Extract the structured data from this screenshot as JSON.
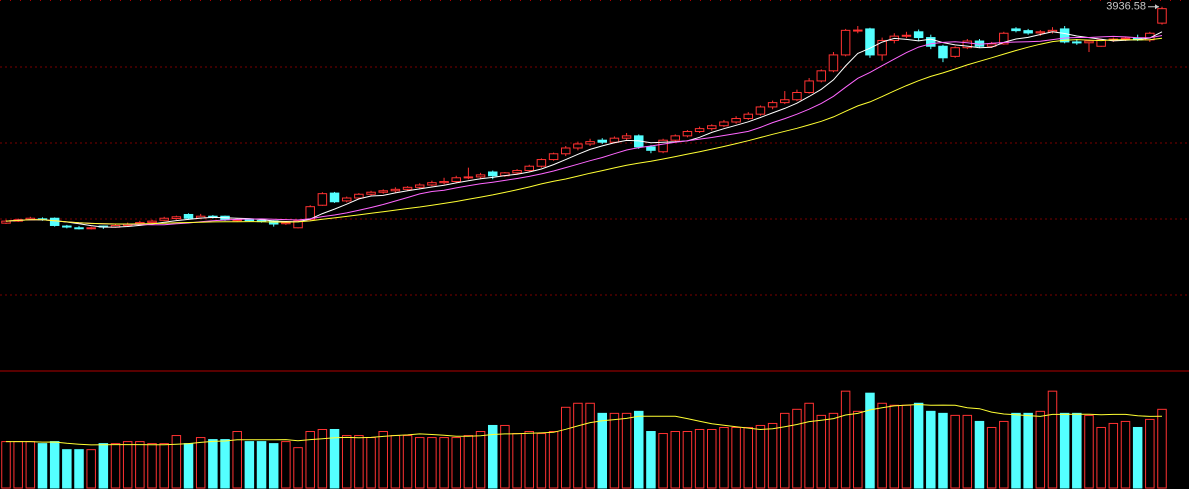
{
  "chart_data": {
    "type": "candlestick",
    "up_color": "#ff3232",
    "down_color": "#54ffff",
    "ylim": [
      2680,
      3960
    ],
    "volume_lim": [
      0,
      115
    ],
    "moving_averages": [
      {
        "period": 5,
        "color": "#ffffff"
      },
      {
        "period": 10,
        "color": "#ff66ff"
      },
      {
        "period": 20,
        "color": "#ffff33"
      }
    ],
    "volume_average": {
      "period": 10,
      "color": "#ffff33"
    },
    "open": [
      3188,
      3195,
      3200,
      3203,
      3205,
      3178,
      3172,
      3170,
      3178,
      3174,
      3180,
      3186,
      3190,
      3198,
      3204,
      3218,
      3206,
      3212,
      3212,
      3198,
      3200,
      3197,
      3196,
      3186,
      3172,
      3200,
      3250,
      3292,
      3265,
      3275,
      3288,
      3295,
      3300,
      3305,
      3312,
      3320,
      3328,
      3332,
      3345,
      3348,
      3365,
      3352,
      3362,
      3370,
      3385,
      3408,
      3428,
      3448,
      3462,
      3475,
      3468,
      3482,
      3490,
      3452,
      3435,
      3475,
      3490,
      3505,
      3515,
      3525,
      3538,
      3550,
      3565,
      3590,
      3605,
      3615,
      3640,
      3680,
      3715,
      3770,
      3855,
      3860,
      3770,
      3820,
      3835,
      3850,
      3830,
      3800,
      3765,
      3795,
      3818,
      3800,
      3808,
      3860,
      3854,
      3846,
      3850,
      3860,
      3815,
      3812,
      3800,
      3822,
      3825,
      3828,
      3822,
      3880
    ],
    "high": [
      3200,
      3204,
      3210,
      3208,
      3208,
      3182,
      3178,
      3176,
      3180,
      3184,
      3190,
      3196,
      3200,
      3210,
      3214,
      3222,
      3220,
      3216,
      3214,
      3204,
      3204,
      3200,
      3198,
      3194,
      3200,
      3250,
      3295,
      3296,
      3280,
      3292,
      3300,
      3305,
      3312,
      3316,
      3326,
      3335,
      3345,
      3352,
      3380,
      3362,
      3370,
      3365,
      3375,
      3390,
      3412,
      3432,
      3455,
      3470,
      3480,
      3482,
      3488,
      3500,
      3495,
      3458,
      3480,
      3495,
      3510,
      3522,
      3530,
      3545,
      3558,
      3572,
      3595,
      3612,
      3645,
      3650,
      3690,
      3720,
      3780,
      3860,
      3870,
      3864,
      3830,
      3845,
      3850,
      3858,
      3840,
      3805,
      3800,
      3825,
      3825,
      3815,
      3850,
      3866,
      3860,
      3856,
      3866,
      3870,
      3825,
      3822,
      3826,
      3830,
      3832,
      3840,
      3850,
      3936.58
    ],
    "low": [
      3185,
      3192,
      3198,
      3196,
      3176,
      3170,
      3166,
      3166,
      3168,
      3172,
      3176,
      3184,
      3188,
      3196,
      3200,
      3200,
      3204,
      3204,
      3196,
      3194,
      3194,
      3190,
      3176,
      3182,
      3170,
      3198,
      3248,
      3258,
      3260,
      3270,
      3284,
      3290,
      3294,
      3300,
      3306,
      3316,
      3322,
      3326,
      3340,
      3340,
      3340,
      3348,
      3356,
      3365,
      3380,
      3404,
      3420,
      3440,
      3455,
      3462,
      3464,
      3476,
      3445,
      3430,
      3430,
      3470,
      3485,
      3500,
      3508,
      3520,
      3532,
      3545,
      3560,
      3582,
      3600,
      3610,
      3636,
      3675,
      3710,
      3765,
      3845,
      3760,
      3750,
      3810,
      3828,
      3820,
      3790,
      3745,
      3760,
      3790,
      3795,
      3795,
      3805,
      3848,
      3840,
      3836,
      3844,
      3810,
      3805,
      3780,
      3798,
      3815,
      3818,
      3818,
      3815,
      3875
    ],
    "close": [
      3195,
      3200,
      3205,
      3200,
      3180,
      3175,
      3170,
      3172,
      3175,
      3180,
      3185,
      3190,
      3195,
      3205,
      3210,
      3205,
      3212,
      3208,
      3200,
      3200,
      3198,
      3195,
      3185,
      3190,
      3196,
      3245,
      3290,
      3262,
      3275,
      3288,
      3295,
      3300,
      3305,
      3312,
      3320,
      3328,
      3332,
      3345,
      3348,
      3355,
      3352,
      3362,
      3370,
      3385,
      3408,
      3428,
      3448,
      3462,
      3470,
      3468,
      3482,
      3490,
      3452,
      3440,
      3475,
      3490,
      3505,
      3515,
      3525,
      3538,
      3550,
      3565,
      3590,
      3605,
      3615,
      3640,
      3680,
      3715,
      3770,
      3855,
      3856,
      3770,
      3820,
      3835,
      3838,
      3830,
      3800,
      3760,
      3795,
      3818,
      3800,
      3808,
      3845,
      3854,
      3846,
      3850,
      3855,
      3815,
      3812,
      3818,
      3822,
      3825,
      3828,
      3822,
      3845,
      3930
    ],
    "volume": [
      46,
      46,
      46,
      44,
      46,
      38,
      38,
      38,
      44,
      44,
      46,
      46,
      44,
      44,
      52,
      44,
      50,
      48,
      48,
      56,
      46,
      46,
      44,
      46,
      40,
      56,
      58,
      58,
      52,
      52,
      50,
      56,
      52,
      52,
      50,
      50,
      50,
      50,
      52,
      56,
      62,
      62,
      54,
      56,
      54,
      56,
      80,
      84,
      84,
      74,
      74,
      74,
      76,
      56,
      54,
      56,
      56,
      58,
      58,
      60,
      60,
      60,
      62,
      64,
      74,
      78,
      84,
      72,
      74,
      96,
      76,
      94,
      84,
      82,
      82,
      84,
      76,
      74,
      72,
      72,
      66,
      60,
      66,
      74,
      74,
      76,
      96,
      74,
      74,
      72,
      60,
      64,
      66,
      60,
      68,
      78
    ]
  }
}
